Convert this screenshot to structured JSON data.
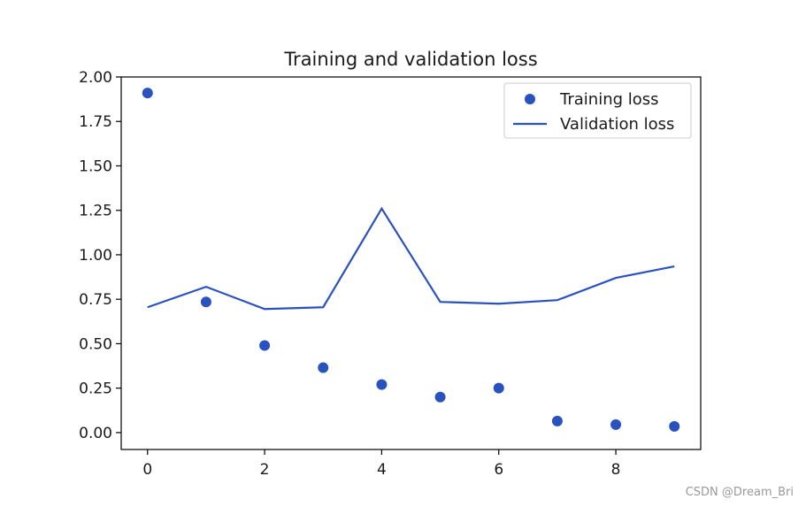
{
  "chart_data": {
    "type": "scatter+line",
    "title": "Training and validation loss",
    "xlabel": "",
    "ylabel": "",
    "xlim": [
      -0.45,
      9.45
    ],
    "ylim": [
      -0.095,
      2.0
    ],
    "xticks": [
      0,
      2,
      4,
      6,
      8
    ],
    "yticks": [
      0.0,
      0.25,
      0.5,
      0.75,
      1.0,
      1.25,
      1.5,
      1.75,
      2.0
    ],
    "ytick_labels": [
      "0.00",
      "0.25",
      "0.50",
      "0.75",
      "1.00",
      "1.25",
      "1.50",
      "1.75",
      "2.00"
    ],
    "xtick_labels": [
      "0",
      "2",
      "4",
      "6",
      "8"
    ],
    "grid": false,
    "legend_position": "top-right",
    "series": [
      {
        "name": "Training loss",
        "style": "markers",
        "color": "#2a52be",
        "x": [
          0,
          1,
          2,
          3,
          4,
          5,
          6,
          7,
          8,
          9
        ],
        "y": [
          1.91,
          0.735,
          0.49,
          0.365,
          0.27,
          0.2,
          0.25,
          0.065,
          0.045,
          0.035
        ]
      },
      {
        "name": "Validation loss",
        "style": "line",
        "color": "#2a52be",
        "x": [
          0,
          1,
          2,
          3,
          4,
          5,
          6,
          7,
          8,
          9
        ],
        "y": [
          0.705,
          0.82,
          0.695,
          0.705,
          1.26,
          0.735,
          0.725,
          0.745,
          0.87,
          0.935
        ]
      }
    ]
  },
  "watermark": "CSDN @Dream_Bri"
}
